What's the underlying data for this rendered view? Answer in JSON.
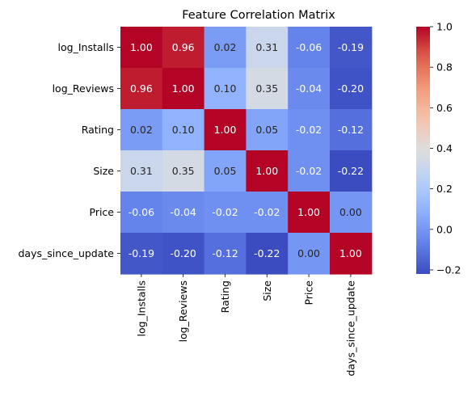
{
  "chart_data": {
    "type": "heatmap",
    "title": "Feature Correlation Matrix",
    "row_labels": [
      "log_Installs",
      "log_Reviews",
      "Rating",
      "Size",
      "Price",
      "days_since_update"
    ],
    "col_labels": [
      "log_Installs",
      "log_Reviews",
      "Rating",
      "Size",
      "Price",
      "days_since_update"
    ],
    "values": [
      [
        1.0,
        0.96,
        0.02,
        0.31,
        -0.06,
        -0.19
      ],
      [
        0.96,
        1.0,
        0.1,
        0.35,
        -0.04,
        -0.2
      ],
      [
        0.02,
        0.1,
        1.0,
        0.05,
        -0.02,
        -0.12
      ],
      [
        0.31,
        0.35,
        0.05,
        1.0,
        -0.02,
        -0.22
      ],
      [
        -0.06,
        -0.04,
        -0.02,
        -0.02,
        1.0,
        0.0
      ],
      [
        -0.19,
        -0.2,
        -0.12,
        -0.22,
        0.0,
        1.0
      ]
    ],
    "annotation_format": "0.00",
    "colormap": "coolwarm",
    "color_range": [
      -0.22,
      1.0
    ],
    "colorbar_ticks": [
      "1.0",
      "0.8",
      "0.6",
      "0.4",
      "0.2",
      "0.0",
      "−0.2"
    ],
    "colorbar_tick_values": [
      1.0,
      0.8,
      0.6,
      0.4,
      0.2,
      0.0,
      -0.2
    ]
  }
}
